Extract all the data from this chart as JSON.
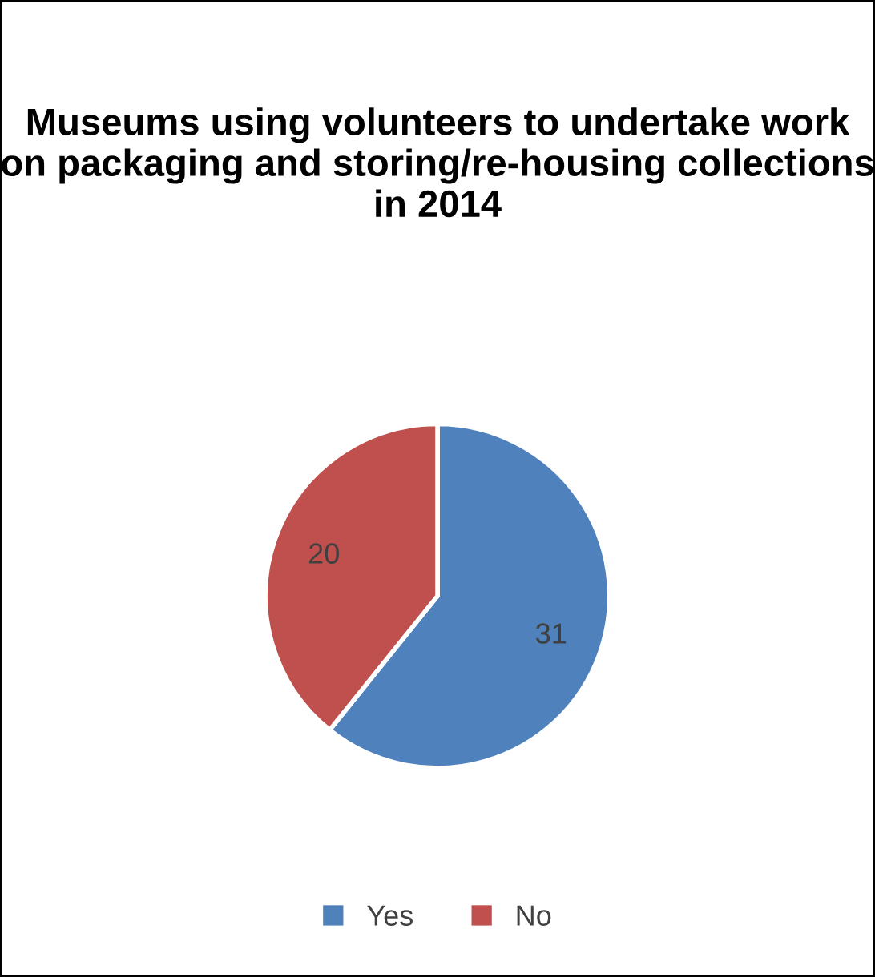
{
  "chart_data": {
    "type": "pie",
    "title": "Museums using volunteers to undertake work on packaging and storing/re-housing collections in 2014",
    "categories": [
      "Yes",
      "No"
    ],
    "values": [
      31,
      20
    ],
    "colors": [
      "#4f81bd",
      "#c0504d"
    ],
    "data_labels": true,
    "legend": "bottom"
  }
}
